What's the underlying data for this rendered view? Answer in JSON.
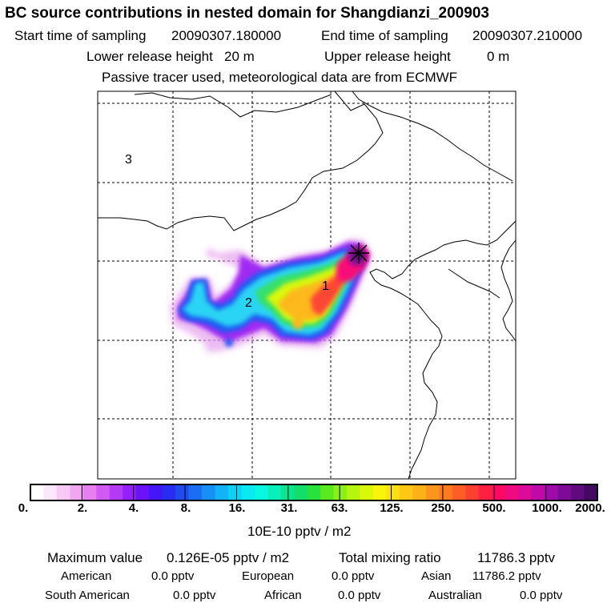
{
  "header": {
    "title": "BC  source contributions in nested domain for Shangdianzi_200903",
    "start_label": "Start time of sampling",
    "start_value": "20090307.180000",
    "end_label": "End time of sampling",
    "end_value": "20090307.210000",
    "lower_label": "Lower release height",
    "lower_value": "20 m",
    "upper_label": "Upper release height",
    "upper_value": "0 m",
    "note": "Passive tracer used, meteorological data are from ECMWF"
  },
  "map": {
    "region_labels": [
      "3",
      "2",
      "1"
    ],
    "receptor_marker": "cross-marker"
  },
  "colorbar": {
    "ticks": [
      "0.",
      "2.",
      "4.",
      "8.",
      "16.",
      "31.",
      "63.",
      "125.",
      "250.",
      "500.",
      "1000.",
      "2000."
    ],
    "unit": "10E-10 pptv / m2",
    "colors": [
      "#ffffff",
      "#fde7fd",
      "#f8c9f8",
      "#f0a6f0",
      "#e780ee",
      "#d15bf0",
      "#b53af3",
      "#9420f7",
      "#6a12f8",
      "#4216f5",
      "#2a2cf2",
      "#1e4cf0",
      "#1a6ef2",
      "#1790f5",
      "#12b2f7",
      "#0dd2f6",
      "#0ae8f2",
      "#08f7e0",
      "#08f0b8",
      "#0ae690",
      "#14de6a",
      "#28e23c",
      "#5ae820",
      "#8cf014",
      "#b8f50e",
      "#dcf80a",
      "#f8f40a",
      "#fde010",
      "#fdc814",
      "#fdb018",
      "#fd951c",
      "#fd7a20",
      "#fd5e26",
      "#fd4030",
      "#fd2040",
      "#fd0a60",
      "#f00a80",
      "#dc0a98",
      "#c00aa8",
      "#a00aa8",
      "#800a98",
      "#600a80",
      "#440a60"
    ]
  },
  "footer": {
    "max_label": "Maximum value",
    "max_value": "0.126E-05 pptv / m2",
    "total_label": "Total mixing ratio",
    "total_value": "11786.3 pptv",
    "american_label": "American",
    "american_value": "0.0 pptv",
    "european_label": "European",
    "european_value": "0.0 pptv",
    "asian_label": "Asian",
    "asian_value": "11786.2 pptv",
    "south_american_label": "South American",
    "south_american_value": "0.0 pptv",
    "african_label": "African",
    "african_value": "0.0 pptv",
    "australian_label": "Australian",
    "australian_value": "0.0 pptv"
  }
}
